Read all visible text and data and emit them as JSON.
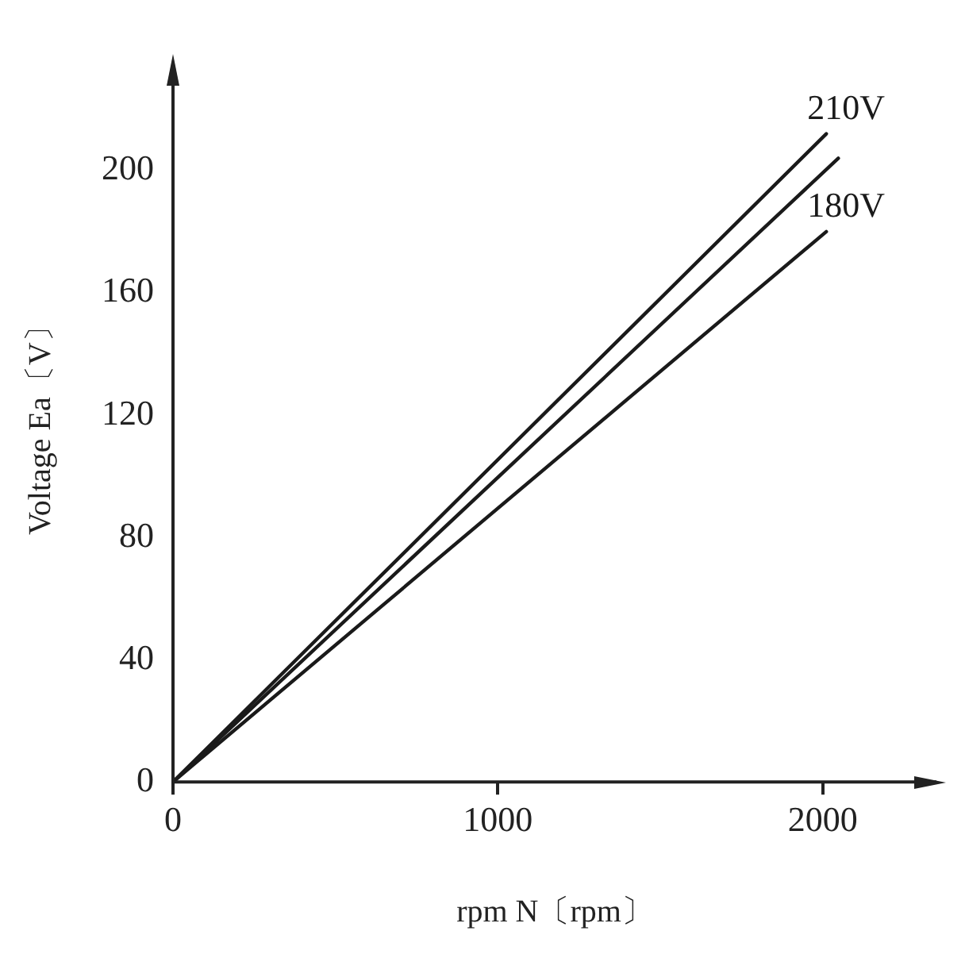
{
  "chart_data": {
    "type": "line",
    "xlabel": "rpm N〔rpm〕",
    "ylabel": "Voltage Ea〔V〕",
    "xlim": [
      0,
      2350
    ],
    "ylim": [
      0,
      235
    ],
    "xticks": [
      0,
      1000,
      2000
    ],
    "yticks": [
      0,
      40,
      80,
      120,
      160,
      200
    ],
    "grid": false,
    "legend": false,
    "marker": "none",
    "line_style": "solid",
    "series": [
      {
        "name": "210V",
        "color": "#1a1a1a",
        "x": [
          0,
          2011
        ],
        "values": [
          0,
          212
        ]
      },
      {
        "color": "#1a1a1a",
        "x": [
          0,
          2048
        ],
        "values": [
          0,
          204
        ]
      },
      {
        "name": "180V",
        "color": "#1a1a1a",
        "x": [
          0,
          2011
        ],
        "values": [
          0,
          180
        ]
      }
    ]
  }
}
